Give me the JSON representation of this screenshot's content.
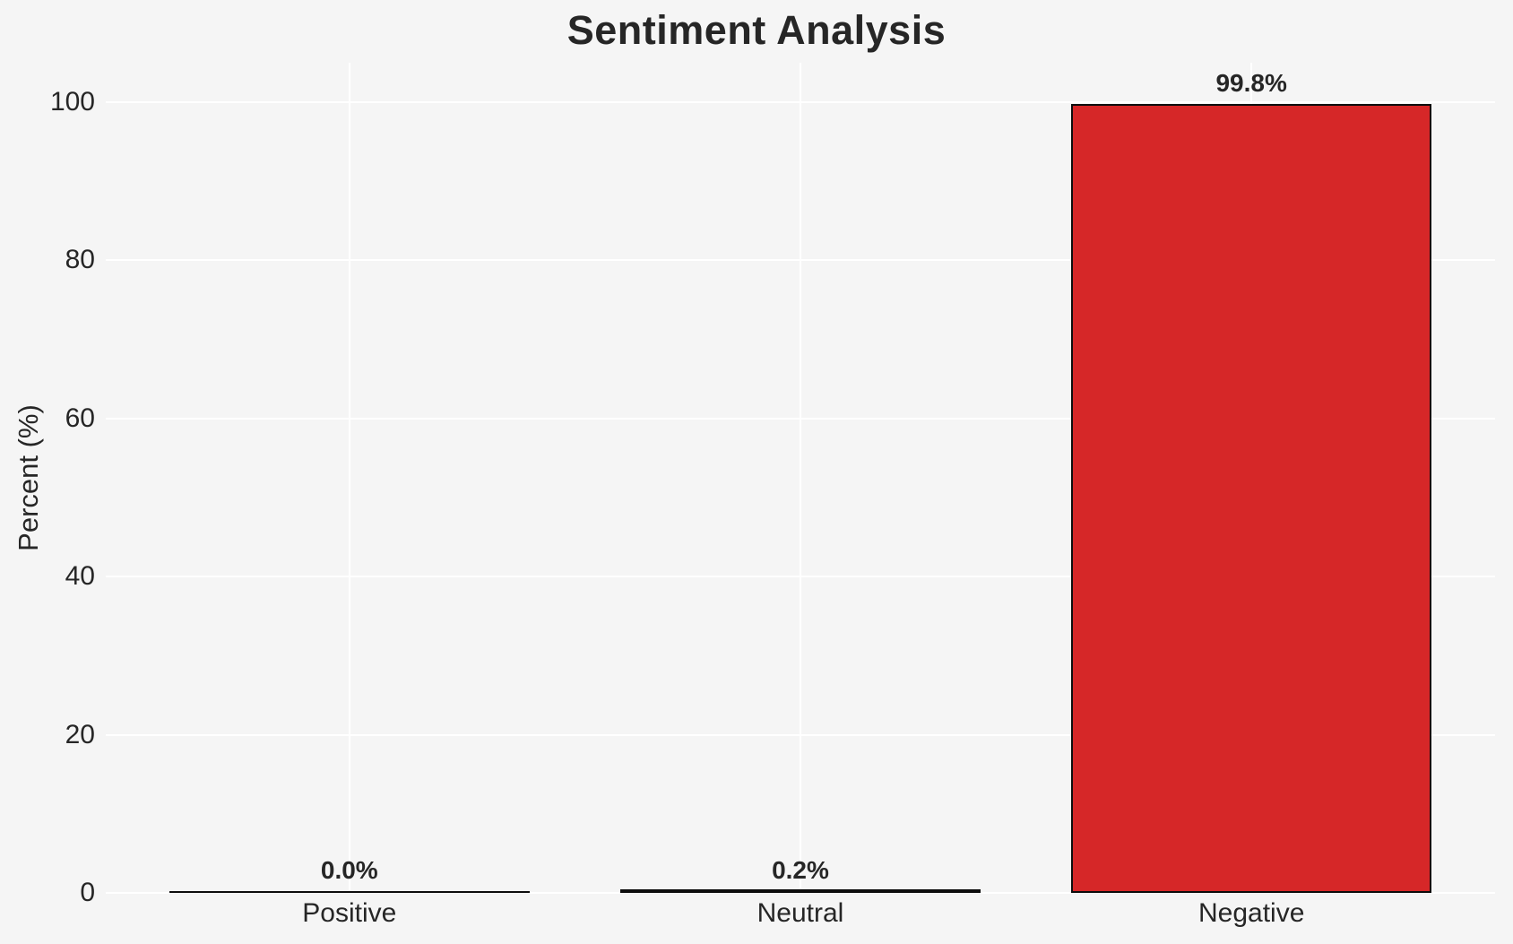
{
  "title": "Sentiment Analysis",
  "chart_data": {
    "type": "bar",
    "title": "Sentiment Analysis",
    "categories": [
      "Positive",
      "Neutral",
      "Negative"
    ],
    "values": [
      0.0,
      0.2,
      99.8
    ],
    "value_labels": [
      "0.0%",
      "0.2%",
      "99.8%"
    ],
    "xlabel": "",
    "ylabel": "Percent (%)",
    "yticks": [
      0,
      20,
      40,
      60,
      80,
      100
    ],
    "ylim": [
      0,
      105
    ],
    "grid": true,
    "legend": false,
    "colors": {
      "bar_fill": "#d62728",
      "bar_edge": "#0d0d0d",
      "background": "#f5f5f5",
      "grid": "#ffffff",
      "text": "#262626"
    }
  }
}
